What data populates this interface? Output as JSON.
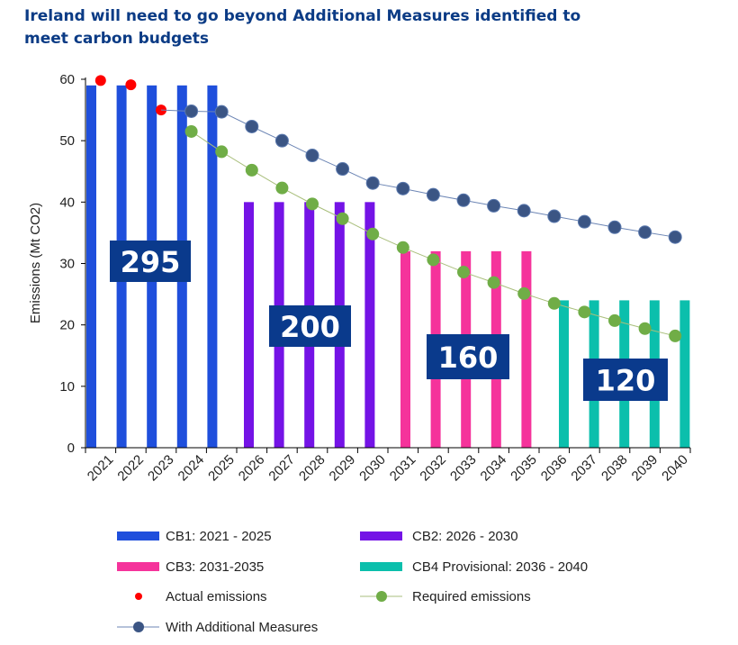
{
  "title": "Ireland will need to go beyond Additional Measures identified to meet carbon budgets",
  "chart_data": {
    "type": "bar",
    "title": "Ireland will need to go beyond Additional Measures identified to meet carbon budgets",
    "xlabel": "",
    "ylabel": "Emissions (Mt CO2)",
    "ylim": [
      0,
      60
    ],
    "yticks": [
      0,
      10,
      20,
      30,
      40,
      50,
      60
    ],
    "grid": false,
    "legend_position": "bottom",
    "categories": [
      "2021",
      "2022",
      "2023",
      "2024",
      "2025",
      "2026",
      "2027",
      "2028",
      "2029",
      "2030",
      "2031",
      "2032",
      "2033",
      "2034",
      "2035",
      "2036",
      "2037",
      "2038",
      "2039",
      "2040"
    ],
    "bar_series": [
      {
        "name": "CB1: 2021 - 2025",
        "color": "#1f4fdc",
        "values": [
          59,
          59,
          59,
          59,
          59,
          null,
          null,
          null,
          null,
          null,
          null,
          null,
          null,
          null,
          null,
          null,
          null,
          null,
          null,
          null
        ]
      },
      {
        "name": "CB2: 2026 - 2030",
        "color": "#7413e6",
        "values": [
          null,
          null,
          null,
          null,
          null,
          40,
          40,
          40,
          40,
          40,
          null,
          null,
          null,
          null,
          null,
          null,
          null,
          null,
          null,
          null
        ]
      },
      {
        "name": "CB3: 2031-2035",
        "color": "#f5339b",
        "values": [
          null,
          null,
          null,
          null,
          null,
          null,
          null,
          null,
          null,
          null,
          32,
          32,
          32,
          32,
          32,
          null,
          null,
          null,
          null,
          null
        ]
      },
      {
        "name": "CB4 Provisional: 2036 - 2040",
        "color": "#0bbfac",
        "values": [
          null,
          null,
          null,
          null,
          null,
          null,
          null,
          null,
          null,
          null,
          null,
          null,
          null,
          null,
          null,
          24,
          24,
          24,
          24,
          24
        ]
      }
    ],
    "point_series": [
      {
        "name": "Actual emissions",
        "color": "#ff0000",
        "line": false,
        "values": [
          59.8,
          59.1,
          55.0,
          null,
          null,
          null,
          null,
          null,
          null,
          null,
          null,
          null,
          null,
          null,
          null,
          null,
          null,
          null,
          null,
          null
        ]
      },
      {
        "name": "Required emissions",
        "color": "#70ad47",
        "line": true,
        "values": [
          null,
          null,
          null,
          51.5,
          48.2,
          45.2,
          42.3,
          39.7,
          37.3,
          34.8,
          32.6,
          30.6,
          28.6,
          26.9,
          25.1,
          23.5,
          22.1,
          20.7,
          19.4,
          18.2
        ]
      },
      {
        "name": "With Additional Measures",
        "color": "#3b5584",
        "line": true,
        "values": [
          null,
          null,
          55.0,
          54.8,
          54.7,
          52.3,
          50.0,
          47.6,
          45.4,
          43.1,
          42.2,
          41.2,
          40.3,
          39.4,
          38.6,
          37.7,
          36.8,
          35.9,
          35.1,
          34.3
        ]
      }
    ],
    "annotations": [
      {
        "text": "295",
        "budget": "CB1"
      },
      {
        "text": "200",
        "budget": "CB2"
      },
      {
        "text": "160",
        "budget": "CB3"
      },
      {
        "text": "120",
        "budget": "CB4"
      }
    ],
    "annotation_color": "#0a3a8c"
  }
}
